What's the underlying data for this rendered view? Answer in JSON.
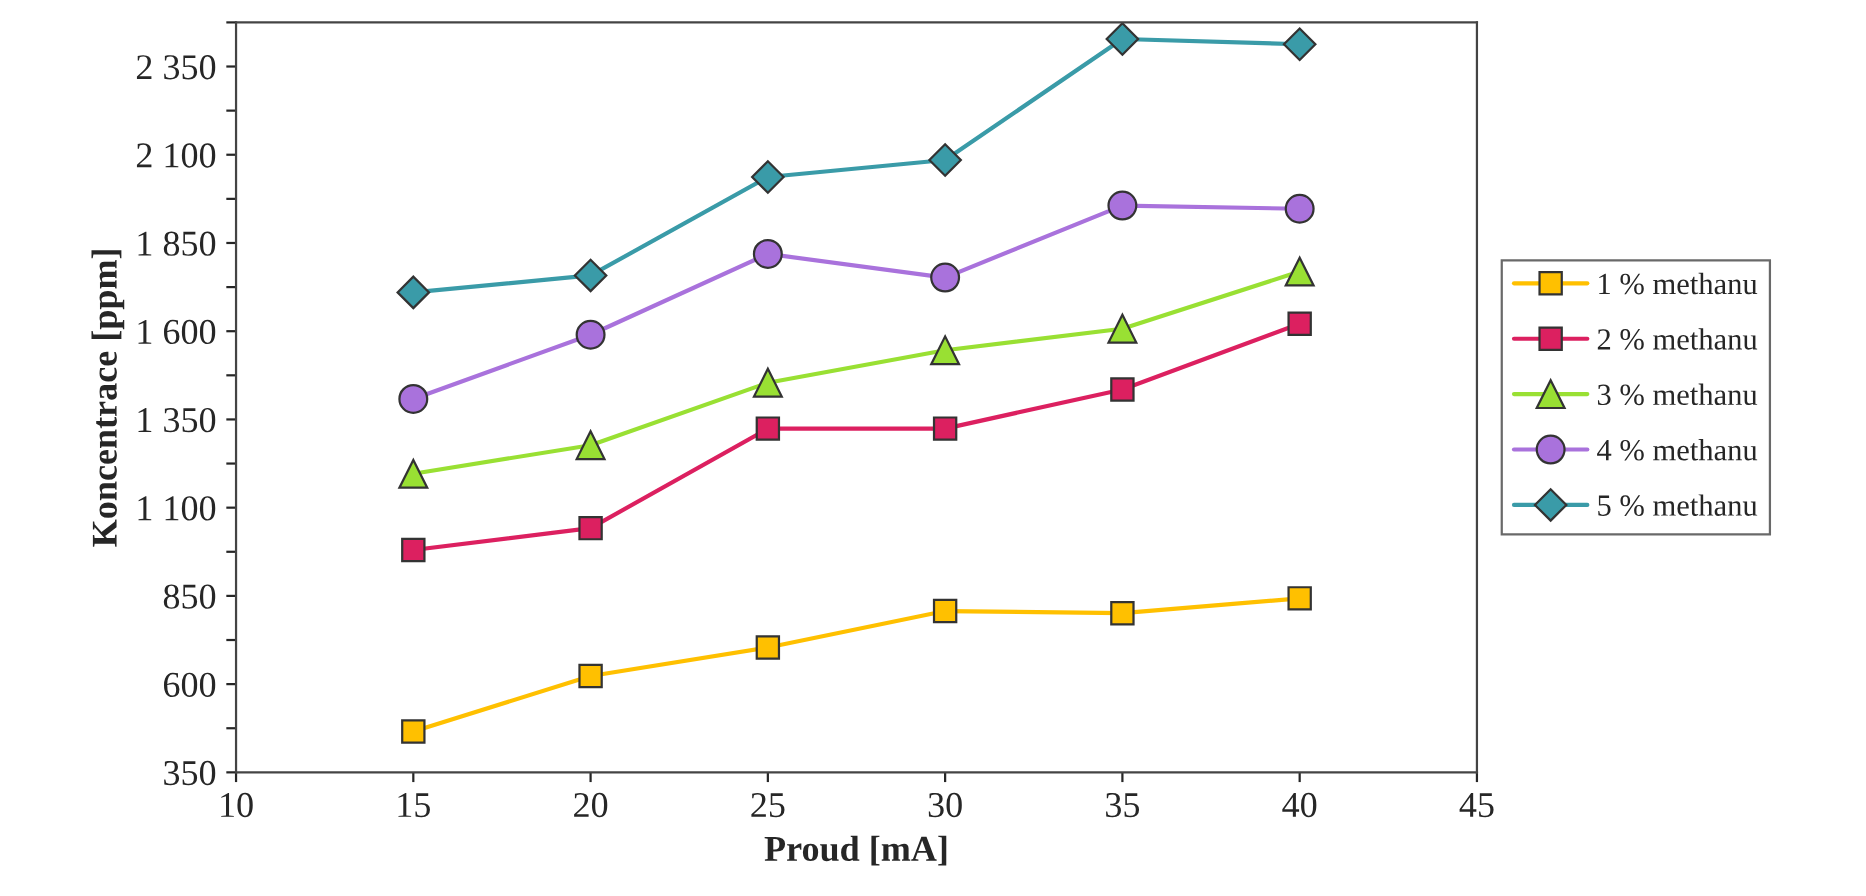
{
  "chart_data": {
    "type": "line",
    "xlabel": "Proud [mA]",
    "ylabel": "Koncentrace [ppm]",
    "x": [
      15,
      20,
      25,
      30,
      35,
      40
    ],
    "series": [
      {
        "name": "1 % methanu",
        "color": "#ffc000",
        "marker": "square",
        "values": [
          466,
          623,
          704,
          807,
          801,
          843
        ]
      },
      {
        "name": "2 % methanu",
        "color": "#dc2060",
        "marker": "square",
        "values": [
          980,
          1042,
          1324,
          1324,
          1435,
          1621
        ]
      },
      {
        "name": "3 % methanu",
        "color": "#99e033",
        "marker": "triangle",
        "values": [
          1196,
          1277,
          1454,
          1546,
          1607,
          1769
        ]
      },
      {
        "name": "4 % methanu",
        "color": "#a972dc",
        "marker": "circle",
        "values": [
          1408,
          1590,
          1819,
          1752,
          1956,
          1947
        ]
      },
      {
        "name": "5 % methanu",
        "color": "#3a9ba8",
        "marker": "diamond",
        "values": [
          1710,
          1758,
          2037,
          2085,
          2428,
          2413
        ]
      }
    ],
    "xlim": [
      10,
      45
    ],
    "xticks": [
      10,
      15,
      20,
      25,
      30,
      35,
      40,
      45
    ],
    "ylim": [
      350,
      2475
    ],
    "yticks": [
      350,
      {
        "value": 475,
        "label": null
      },
      600,
      {
        "value": 725,
        "label": null
      },
      850,
      {
        "value": 975,
        "label": null
      },
      {
        "value": 1100,
        "label": "1 100"
      },
      {
        "value": 1225,
        "label": null
      },
      {
        "value": 1350,
        "label": "1 350"
      },
      {
        "value": 1475,
        "label": null
      },
      {
        "value": 1600,
        "label": "1 600"
      },
      {
        "value": 1725,
        "label": null
      },
      {
        "value": 1850,
        "label": "1 850"
      },
      {
        "value": 1975,
        "label": null
      },
      {
        "value": 2100,
        "label": "2 100"
      },
      {
        "value": 2225,
        "label": null
      },
      {
        "value": 2350,
        "label": "2 350"
      },
      {
        "value": 2475,
        "label": null
      }
    ],
    "grid": false,
    "legend": "right",
    "line_style": "solid"
  }
}
